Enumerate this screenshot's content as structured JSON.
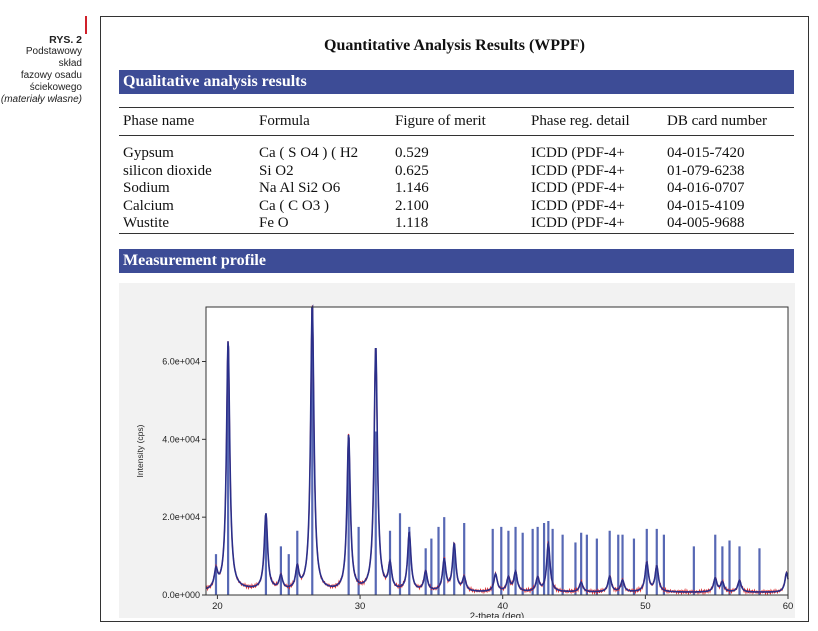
{
  "figure_caption": {
    "label": "RYS. 2",
    "lines": [
      "Podstawowy skład",
      "fazowy osadu",
      "ściekowego"
    ],
    "source": "(materiały własne)"
  },
  "report": {
    "title": "Quantitative Analysis Results (WPPF)",
    "qualitative_header": "Qualitative analysis results",
    "measurement_header": "Measurement profile",
    "table": {
      "columns": [
        "Phase name",
        "Formula",
        "Figure of merit",
        "Phase reg. detail",
        "DB card number"
      ],
      "rows": [
        [
          "Gypsum",
          "Ca ( S O4 ) ( H2",
          "0.529",
          "ICDD (PDF-4+",
          "04-015-7420"
        ],
        [
          "silicon dioxide",
          "Si O2",
          "0.625",
          "ICDD (PDF-4+",
          "01-079-6238"
        ],
        [
          "Sodium",
          "Na Al Si2 O6",
          "1.146",
          "ICDD (PDF-4+",
          "04-016-0707"
        ],
        [
          "Calcium",
          "Ca ( C O3 )",
          "2.100",
          "ICDD (PDF-4+",
          "04-015-4109"
        ],
        [
          "Wustite",
          "Fe O",
          "1.118",
          "ICDD (PDF-4+",
          "04-005-9688"
        ]
      ]
    }
  },
  "chart_data": {
    "type": "line",
    "xlabel": "2-theta (deg)",
    "ylabel": "Intensity (cps)",
    "xlim": [
      19.2,
      60
    ],
    "ylim": [
      0,
      74000
    ],
    "xticks": [
      20,
      30,
      40,
      50,
      60
    ],
    "yticks": [
      0,
      20000,
      40000,
      60000
    ],
    "ytick_labels": [
      "0.0e+000",
      "2.0e+004",
      "4.0e+004",
      "6.0e+004"
    ],
    "baseline": 700,
    "colors": {
      "observed": "#e03030",
      "calculated": "#2a2f8a",
      "markers": "#3a4ea8"
    },
    "peaks": [
      {
        "x": 19.9,
        "y": 4500
      },
      {
        "x": 20.75,
        "y": 64000
      },
      {
        "x": 23.4,
        "y": 19500
      },
      {
        "x": 24.45,
        "y": 3500
      },
      {
        "x": 25.6,
        "y": 5500
      },
      {
        "x": 26.65,
        "y": 74000
      },
      {
        "x": 29.2,
        "y": 40000
      },
      {
        "x": 31.1,
        "y": 63000
      },
      {
        "x": 32.1,
        "y": 6500
      },
      {
        "x": 33.45,
        "y": 15000
      },
      {
        "x": 34.6,
        "y": 5000
      },
      {
        "x": 35.9,
        "y": 8000
      },
      {
        "x": 36.6,
        "y": 12000
      },
      {
        "x": 37.3,
        "y": 3500
      },
      {
        "x": 39.5,
        "y": 4500
      },
      {
        "x": 40.4,
        "y": 3500
      },
      {
        "x": 40.9,
        "y": 5000
      },
      {
        "x": 42.45,
        "y": 3500
      },
      {
        "x": 43.2,
        "y": 12500
      },
      {
        "x": 45.5,
        "y": 2500
      },
      {
        "x": 47.5,
        "y": 4000
      },
      {
        "x": 48.4,
        "y": 3000
      },
      {
        "x": 50.1,
        "y": 7500
      },
      {
        "x": 50.8,
        "y": 6500
      },
      {
        "x": 54.9,
        "y": 3500
      },
      {
        "x": 55.4,
        "y": 2500
      },
      {
        "x": 56.6,
        "y": 3000
      },
      {
        "x": 59.9,
        "y": 5000
      }
    ],
    "marker_positions": [
      19.9,
      20.75,
      23.4,
      24.45,
      25.0,
      25.6,
      26.65,
      29.2,
      29.9,
      31.1,
      32.1,
      32.8,
      33.45,
      34.6,
      35.0,
      35.5,
      35.9,
      36.6,
      37.3,
      39.3,
      39.9,
      40.4,
      40.9,
      41.4,
      42.1,
      42.45,
      42.9,
      43.2,
      43.5,
      44.2,
      45.1,
      45.5,
      45.9,
      46.6,
      47.5,
      48.1,
      48.4,
      49.2,
      50.1,
      50.8,
      51.3,
      53.4,
      54.9,
      55.4,
      55.9,
      56.6,
      58.0
    ],
    "marker_heights": [
      10500,
      64000,
      20500,
      12500,
      10500,
      16500,
      74000,
      40500,
      17500,
      42000,
      16500,
      21000,
      17500,
      12000,
      14500,
      17500,
      20000,
      12500,
      18500,
      17000,
      17500,
      16500,
      17500,
      16000,
      17000,
      17500,
      18500,
      19000,
      17000,
      15500,
      13500,
      16000,
      15500,
      14500,
      16500,
      15500,
      15500,
      14500,
      17000,
      17000,
      15500,
      12500,
      15500,
      12500,
      14000,
      12500,
      12000
    ]
  }
}
